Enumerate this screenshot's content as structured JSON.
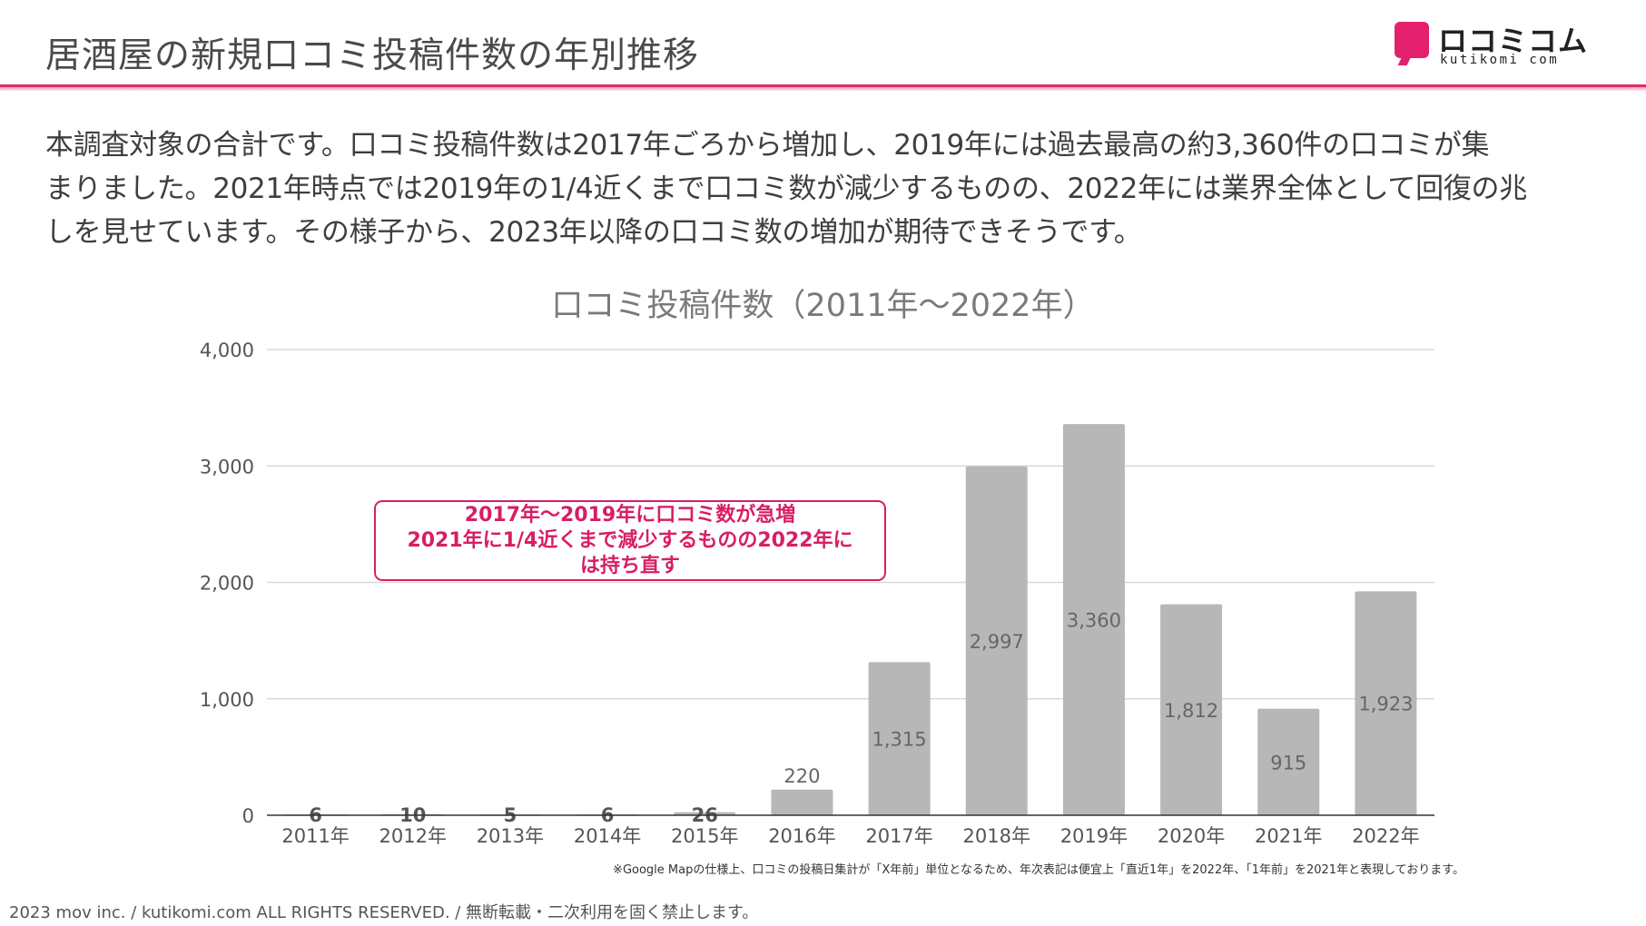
{
  "page": {
    "title": "居酒屋の新規口コミ投稿件数の年別推移",
    "description_lines": [
      "本調査対象の合計です。口コミ投稿件数は2017年ごろから増加し、2019年には過去最高の約3,360件の口コミが集",
      "まりました。2021年時点では2019年の1/4近くまで口コミ数が減少するものの、2022年には業界全体として回復の兆",
      "しを見せています。その様子から、2023年以降の口コミ数の増加が期待できそうです。"
    ],
    "callout_lines": [
      "2017年〜2019年に口コミ数が急増",
      "2021年に1/4近くまで減少するものの2022年に",
      "は持ち直す"
    ],
    "note": "※Google Mapの仕様上、口コミの投稿日集計が「X年前」単位となるため、年次表記は便宜上「直近1年」を2022年、「1年前」を2021年と表現しております。",
    "footer": "2023 mov inc. / kutikomi.com ALL RIGHTS RESERVED. / 無断転載・二次利用を固く禁止します。"
  },
  "logo": {
    "text_jp": "ロコミコム",
    "text_en": "kutikomi com",
    "color": "#e3206b"
  },
  "colors": {
    "accent": "#e02a6e",
    "bar": "#b7b7b7",
    "grid": "#d9d9d9"
  },
  "chart_data": {
    "type": "bar",
    "title": "口コミ投稿件数（2011年〜2022年）",
    "categories": [
      "2011年",
      "2012年",
      "2013年",
      "2014年",
      "2015年",
      "2016年",
      "2017年",
      "2018年",
      "2019年",
      "2020年",
      "2021年",
      "2022年"
    ],
    "values": [
      6,
      10,
      5,
      6,
      26,
      220,
      1315,
      2997,
      3360,
      1812,
      915,
      1923
    ],
    "value_labels": [
      "6",
      "10",
      "5",
      "6",
      "26",
      "220",
      "1,315",
      "2,997",
      "3,360",
      "1,812",
      "915",
      "1,923"
    ],
    "y_ticks": [
      0,
      1000,
      2000,
      3000,
      4000
    ],
    "y_tick_labels": [
      "0",
      "1,000",
      "2,000",
      "3,000",
      "4,000"
    ],
    "ylim": [
      0,
      4000
    ],
    "grid": true,
    "legend": "none"
  }
}
